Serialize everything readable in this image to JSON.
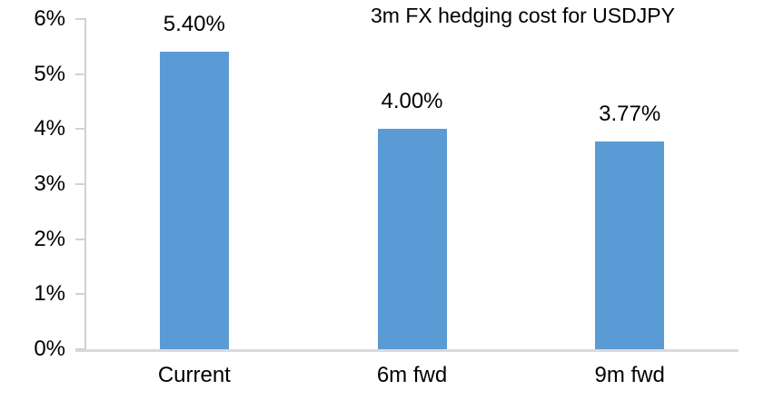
{
  "chart_data": {
    "type": "bar",
    "title": "3m FX hedging cost for USDJPY",
    "categories": [
      "Current",
      "6m fwd",
      "9m fwd"
    ],
    "values": [
      5.4,
      4.0,
      3.77
    ],
    "data_labels": [
      "5.40%",
      "4.00%",
      "3.77%"
    ],
    "ylabel": "",
    "xlabel": "",
    "ylim": [
      0,
      6
    ],
    "y_tick_labels": [
      "0%",
      "1%",
      "2%",
      "3%",
      "4%",
      "5%",
      "6%"
    ],
    "grid": false,
    "legend_position": "none",
    "colors": {
      "bar": "#5b9bd5",
      "axis_line": "#d2d2d2",
      "baseline": "#dadada",
      "text": "#000000",
      "background": "#ffffff"
    }
  }
}
